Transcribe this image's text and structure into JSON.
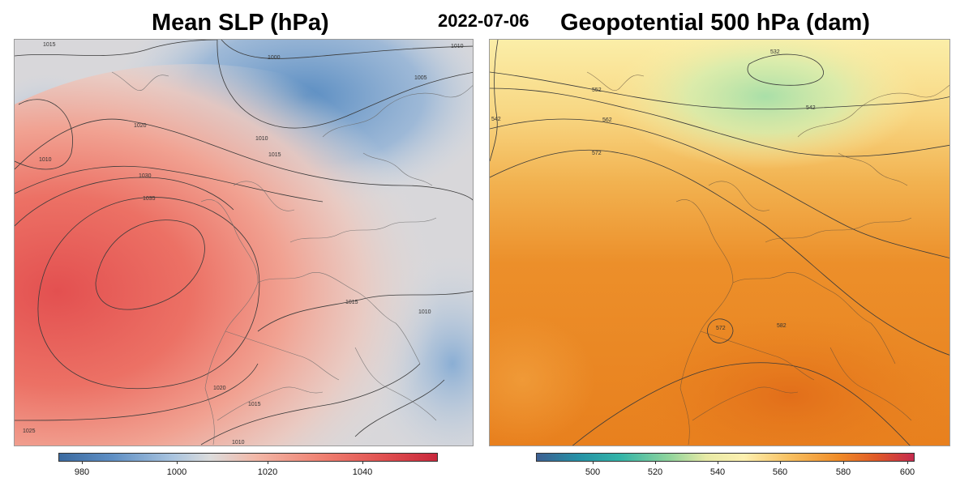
{
  "date": "2022-07-06",
  "left_panel": {
    "title": "Mean SLP (hPa)",
    "colorbar_ticks": [
      "980",
      "1000",
      "1020",
      "1040"
    ],
    "contour_labels": [
      "1015",
      "1000",
      "1005",
      "1010",
      "1010",
      "1015",
      "1020",
      "1030",
      "1035",
      "1010",
      "1015",
      "1015",
      "1020",
      "1025",
      "1010",
      "1010"
    ]
  },
  "right_panel": {
    "title": "Geopotential 500 hPa (dam)",
    "colorbar_ticks": [
      "500",
      "520",
      "540",
      "560",
      "580",
      "600"
    ],
    "contour_labels": [
      "532",
      "542",
      "552",
      "562",
      "572",
      "572",
      "582",
      "542"
    ]
  },
  "colors": {
    "slp_low": "#3b6aa0",
    "slp_mid": "#dcdcdc",
    "slp_high": "#c9283c",
    "z500_low": "#3d5f92",
    "z500_mid": "#fdf0b0",
    "z500_high": "#c52a4e"
  }
}
